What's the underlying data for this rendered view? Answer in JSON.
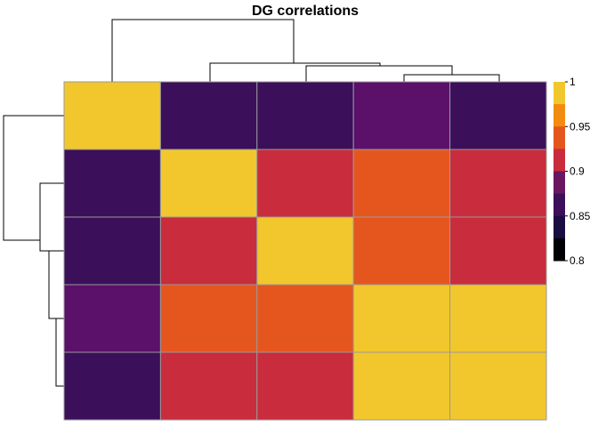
{
  "chart_data": {
    "type": "heatmap",
    "title": "DG correlations",
    "rows": 5,
    "cols": 5,
    "values": [
      [
        1.0,
        0.86,
        0.86,
        0.89,
        0.86
      ],
      [
        0.86,
        1.0,
        0.94,
        0.96,
        0.94
      ],
      [
        0.86,
        0.94,
        1.0,
        0.96,
        0.94
      ],
      [
        0.89,
        0.96,
        0.96,
        1.0,
        1.0
      ],
      [
        0.86,
        0.94,
        0.94,
        1.0,
        1.0
      ]
    ],
    "value_range": [
      0.8,
      1.0
    ],
    "color_bins": [
      {
        "min": 0.8,
        "max": 0.825,
        "color": "#000004"
      },
      {
        "min": 0.825,
        "max": 0.85,
        "color": "#1b0c41"
      },
      {
        "min": 0.85,
        "max": 0.875,
        "color": "#3b0f59"
      },
      {
        "min": 0.875,
        "max": 0.9,
        "color": "#5b106a"
      },
      {
        "min": 0.9,
        "max": 0.925,
        "color": "#6a1760"
      },
      {
        "min": 0.925,
        "max": 0.95,
        "color": "#c92c3c"
      },
      {
        "min": 0.95,
        "max": 0.975,
        "color": "#e5561f"
      },
      {
        "min": 0.975,
        "max": 1.0,
        "color": "#f28b0f"
      },
      {
        "min": 1.0,
        "max": 1.0,
        "color": "#f2c72d"
      }
    ],
    "legend": {
      "ticks": [
        "1",
        "0.95",
        "0.9",
        "0.85",
        "0.8"
      ],
      "colors_top_to_bottom": [
        "#f2c72d",
        "#f28b0f",
        "#e5561f",
        "#c92c3c",
        "#6a1760",
        "#3b0f59",
        "#1b0c41",
        "#000004"
      ],
      "placement": "right"
    },
    "cell_border_color": "#999999",
    "dendrograms": [
      "top",
      "left"
    ]
  }
}
